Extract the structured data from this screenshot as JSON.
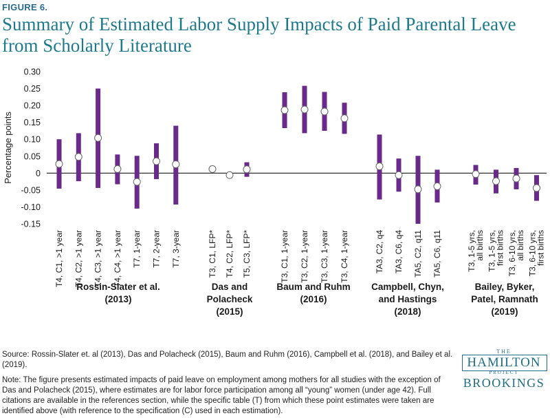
{
  "figure_label": "FIGURE 6.",
  "title": "Summary of Estimated Labor Supply Impacts of Paid Parental Leave from Scholarly Literature",
  "source": "Source:  Rossin-Slater et. al (2013), Das and Polacheck (2015), Baum and Ruhm (2016), Campbell et al. (2018), and Bailey et al. (2019).",
  "note": "Note: The figure presents estimated impacts of paid leave on employment among mothers for all studies with the exception of Das and Polacheck (2015), where estimates are for labor force participation among all “young” women (under age 42). Full citations are available in the references section, while the specific table (T) from which these point estimates were taken are identified above (with reference to the specification (C) used in each estimation).",
  "logo": {
    "the": "THE",
    "hamilton": "HAMILTON",
    "project": "PROJECT",
    "brookings": "BROOKINGS"
  },
  "colors": {
    "bar": "#6a2a8a",
    "title": "#1d7a8c"
  },
  "chart_data": {
    "type": "error-bar",
    "ylabel": "Percentage points",
    "ylim": [
      -0.15,
      0.3
    ],
    "yticks": [
      0.3,
      0.25,
      0.2,
      0.15,
      0.1,
      0.05,
      0,
      -0.05,
      -0.1,
      -0.15
    ],
    "ytick_labels": [
      "0.30",
      "0.25",
      "0.20",
      "0.15",
      "0.10",
      "0.05",
      "0",
      "-0.05",
      "-0.10",
      "-0.15"
    ],
    "groups": [
      {
        "name_lines": [
          "Rossin-Slater et al.",
          "(2013)"
        ],
        "items": [
          {
            "label": [
              "T4, C1, >1 year"
            ],
            "point": 0.027,
            "low": -0.046,
            "high": 0.1
          },
          {
            "label": [
              "T4, C2, >1 year"
            ],
            "point": 0.048,
            "low": -0.024,
            "high": 0.118
          },
          {
            "label": [
              "T4, C3, >1 year"
            ],
            "point": 0.104,
            "low": -0.044,
            "high": 0.25
          },
          {
            "label": [
              "T4, C4, >1 year"
            ],
            "point": 0.012,
            "low": -0.033,
            "high": 0.055
          },
          {
            "label": [
              "T7, 1-year"
            ],
            "point": -0.026,
            "low": -0.105,
            "high": 0.051
          },
          {
            "label": [
              "T7, 2-year"
            ],
            "point": 0.035,
            "low": -0.018,
            "high": 0.088
          },
          {
            "label": [
              "T7, 3-year"
            ],
            "point": 0.026,
            "low": -0.093,
            "high": 0.14
          }
        ]
      },
      {
        "name_lines": [
          "Das and",
          "Polacheck",
          "(2015)"
        ],
        "items": [
          {
            "label": [
              "T3, C1, LFP*"
            ],
            "point": 0.012,
            "low": null,
            "high": null
          },
          {
            "label": [
              "T4, C2, LFP*"
            ],
            "point": -0.006,
            "low": null,
            "high": null
          },
          {
            "label": [
              "T5, C3, LFP*"
            ],
            "point": 0.011,
            "low": -0.011,
            "high": 0.032
          }
        ]
      },
      {
        "name_lines": [
          "Baum and Ruhm",
          "(2016)"
        ],
        "items": [
          {
            "label": [
              "T3, C1, 1-year"
            ],
            "point": 0.186,
            "low": 0.133,
            "high": 0.239
          },
          {
            "label": [
              "T3, C2, 1-year"
            ],
            "point": 0.188,
            "low": 0.118,
            "high": 0.258
          },
          {
            "label": [
              "T3, C3, 1-year"
            ],
            "point": 0.182,
            "low": 0.125,
            "high": 0.24
          },
          {
            "label": [
              "T3, C4, 1-year"
            ],
            "point": 0.162,
            "low": 0.116,
            "high": 0.208
          }
        ]
      },
      {
        "name_lines": [
          "Campbell, Chyn,",
          "and Hastings",
          "(2018)"
        ],
        "items": [
          {
            "label": [
              "TA3, C2, q4"
            ],
            "point": 0.02,
            "low": -0.078,
            "high": 0.114
          },
          {
            "label": [
              "TA3, C6, q4"
            ],
            "point": -0.006,
            "low": -0.055,
            "high": 0.043
          },
          {
            "label": [
              "TA5, C2, q11"
            ],
            "point": -0.048,
            "low": -0.15,
            "high": 0.051
          },
          {
            "label": [
              "TA5, C6, q11"
            ],
            "point": -0.039,
            "low": -0.087,
            "high": 0.01
          }
        ]
      },
      {
        "name_lines": [
          "Bailey, Byker,",
          "Patel, Ramnath",
          "(2019)"
        ],
        "items": [
          {
            "label": [
              "T3, 1-5 yrs,",
              "all births"
            ],
            "point": -0.003,
            "low": -0.034,
            "high": 0.024
          },
          {
            "label": [
              "T3, 1-5 yrs,",
              "first births"
            ],
            "point": -0.024,
            "low": -0.06,
            "high": 0.01
          },
          {
            "label": [
              "T3, 6-10 yrs,",
              "all births"
            ],
            "point": -0.016,
            "low": -0.048,
            "high": 0.015
          },
          {
            "label": [
              "T3, 6-10 yrs,",
              "first births"
            ],
            "point": -0.044,
            "low": -0.082,
            "high": -0.006
          }
        ]
      }
    ]
  }
}
